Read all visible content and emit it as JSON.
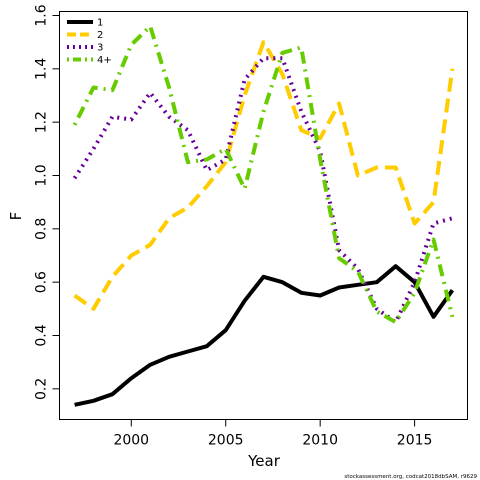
{
  "chart_data": {
    "type": "line",
    "title": "",
    "xlabel": "Year",
    "ylabel": "F",
    "xlim": [
      1997,
      2017
    ],
    "ylim": [
      0.1,
      1.6
    ],
    "x_ticks": [
      2000,
      2005,
      2010,
      2015
    ],
    "y_ticks": [
      0.2,
      0.4,
      0.6,
      0.8,
      1.0,
      1.2,
      1.4,
      1.6
    ],
    "x_tick_labels": [
      "2000",
      "2005",
      "2010",
      "2015"
    ],
    "y_tick_labels": [
      "0.2",
      "0.4",
      "0.6",
      "0.8",
      "1.0",
      "1.2",
      "1.4",
      "1.6"
    ],
    "legend_position": "top-left",
    "grid": false,
    "x": [
      1997,
      1998,
      1999,
      2000,
      2001,
      2002,
      2003,
      2004,
      2005,
      2006,
      2007,
      2008,
      2009,
      2010,
      2011,
      2012,
      2013,
      2014,
      2015,
      2016,
      2017
    ],
    "series": [
      {
        "name": "1",
        "color": "#000000",
        "dash": "solid",
        "values": [
          0.14,
          0.155,
          0.18,
          0.24,
          0.29,
          0.32,
          0.34,
          0.36,
          0.42,
          0.53,
          0.62,
          0.6,
          0.56,
          0.55,
          0.58,
          0.59,
          0.6,
          0.66,
          0.6,
          0.47,
          0.57
        ]
      },
      {
        "name": "2",
        "color": "#ffcc00",
        "dash": "dashed",
        "values": [
          0.55,
          0.5,
          0.62,
          0.7,
          0.74,
          0.84,
          0.88,
          0.96,
          1.05,
          1.3,
          1.5,
          1.38,
          1.17,
          1.14,
          1.27,
          1.0,
          1.03,
          1.03,
          0.82,
          0.9,
          1.4
        ]
      },
      {
        "name": "3",
        "color": "#660099",
        "dash": "dotted",
        "values": [
          0.99,
          1.1,
          1.22,
          1.21,
          1.31,
          1.22,
          1.17,
          1.02,
          1.06,
          1.36,
          1.44,
          1.44,
          1.24,
          1.09,
          0.72,
          0.65,
          0.5,
          0.45,
          0.6,
          0.82,
          0.84
        ]
      },
      {
        "name": "4+",
        "color": "#66cc00",
        "dash": "dotdash",
        "values": [
          1.19,
          1.33,
          1.32,
          1.49,
          1.56,
          1.33,
          1.05,
          1.06,
          1.1,
          0.95,
          1.24,
          1.46,
          1.48,
          1.06,
          0.69,
          0.64,
          0.49,
          0.45,
          0.56,
          0.76,
          0.47
        ]
      }
    ]
  },
  "footnote": "stockassessment.org, codcat2018dbSAM, r9629"
}
